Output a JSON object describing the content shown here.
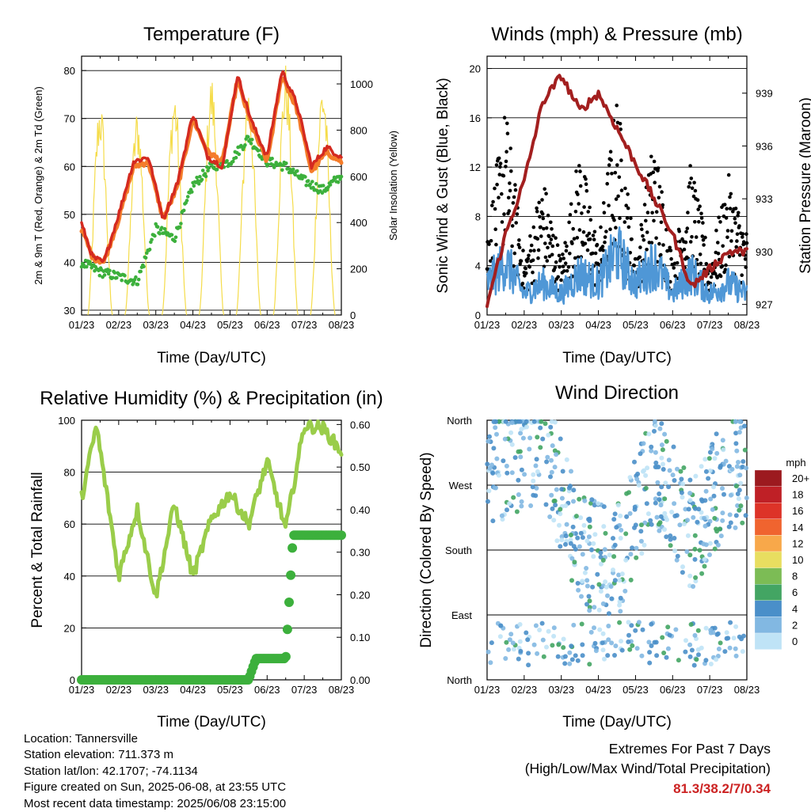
{
  "panels": {
    "temperature": {
      "title": "Temperature (F)",
      "xlabel": "Time (Day/UTC)",
      "ylabel_left": "2m & 9m T (Red, Orange) & 2m Td (Green)",
      "ylabel_right": "Solar Insolation (Yellow)"
    },
    "winds": {
      "title": "Winds (mph) & Pressure (mb)",
      "xlabel": "Time (Day/UTC)",
      "ylabel_left": "Sonic Wind & Gust (Blue, Black)",
      "ylabel_right": "Station Pressure (Maroon)"
    },
    "humidity": {
      "title": "Relative Humidity (%) & Precipitation (in)",
      "xlabel": "Time (Day/UTC)",
      "ylabel_left": "Percent & Total Rainfall"
    },
    "direction": {
      "title": "Wind Direction",
      "xlabel": "Time (Day/UTC)",
      "ylabel_left": "Direction (Colored By Speed)"
    }
  },
  "legend": {
    "title": "mph",
    "labels": [
      "20+",
      "18",
      "16",
      "14",
      "12",
      "10",
      "8",
      "6",
      "4",
      "2",
      "0"
    ],
    "colors": [
      "#9c1a1f",
      "#bf2026",
      "#dd3328",
      "#f0642f",
      "#f8a84a",
      "#e8de60",
      "#7cbc55",
      "#43a563",
      "#4a8fc9",
      "#82b8e2",
      "#bfe3f6"
    ]
  },
  "station_info": {
    "location": "Location: Tannersville",
    "elevation": "Station elevation: 711.373 m",
    "latlon": "Station lat/lon: 42.1707; -74.1134",
    "created": "Figure created on Sun, 2025-06-08, at 23:55 UTC",
    "recent": "Most recent data timestamp: 2025/06/08 23:15:00"
  },
  "extremes": {
    "line1": "Extremes For Past 7 Days",
    "line2": "(High/Low/Max Wind/Total Precipitation)",
    "value": "81.3/38.2/7/0.34"
  },
  "colors": {
    "temp2m": "#d42a20",
    "temp9m": "#f47c2a",
    "dewpoint": "#3cb03c",
    "solar": "#f5dc4a",
    "wind": "#4f97d6",
    "gust": "#000000",
    "pressure": "#a31f1f",
    "rh": "#9acd4a",
    "precip": "#3cb03c"
  },
  "chart_data": [
    {
      "type": "line",
      "title": "Temperature (F)",
      "x_ticks": [
        "01/23",
        "02/23",
        "03/23",
        "04/23",
        "05/23",
        "06/23",
        "07/23",
        "08/23"
      ],
      "ylim_left": [
        29,
        83
      ],
      "yticks_left": [
        30,
        40,
        50,
        60,
        70,
        80
      ],
      "ylim_right": [
        0,
        1120
      ],
      "yticks_right": [
        0,
        200,
        400,
        600,
        800,
        1000
      ],
      "series": [
        {
          "name": "2m T (Red)",
          "axis": "left",
          "x": [
            0,
            0.3,
            0.6,
            1,
            1.4,
            1.8,
            2.2,
            2.6,
            3,
            3.4,
            3.8,
            4.2,
            4.6,
            5,
            5.4,
            5.8,
            6.2,
            6.6,
            7
          ],
          "y": [
            48,
            41,
            40,
            50,
            61,
            62,
            49,
            57,
            71,
            62,
            60,
            79,
            69,
            62,
            80,
            73,
            60,
            64,
            62
          ]
        },
        {
          "name": "9m T (Orange)",
          "axis": "left",
          "x": [
            0,
            0.3,
            0.6,
            1,
            1.4,
            1.8,
            2.2,
            2.6,
            3,
            3.4,
            3.8,
            4.2,
            4.6,
            5,
            5.4,
            5.8,
            6.2,
            6.6,
            7
          ],
          "y": [
            47,
            41,
            40,
            49,
            60,
            61,
            49,
            56,
            70,
            63,
            61,
            78,
            68,
            61,
            79,
            72,
            59,
            63,
            61
          ]
        },
        {
          "name": "2m Td (Green)",
          "axis": "left",
          "x": [
            0,
            0.5,
            1,
            1.5,
            2,
            2.5,
            3,
            3.5,
            4,
            4.5,
            5,
            5.5,
            6,
            6.5,
            7
          ],
          "y": [
            40,
            38,
            37,
            36,
            47,
            45,
            56,
            60,
            61,
            66,
            61,
            60,
            57,
            55,
            58
          ]
        },
        {
          "name": "Solar Insolation (Yellow)",
          "axis": "right",
          "x": [
            0.5,
            1.5,
            2.5,
            3.5,
            4.5,
            5.5,
            6.5
          ],
          "y": [
            950,
            900,
            1000,
            1050,
            1020,
            1100,
            1050
          ]
        }
      ]
    },
    {
      "type": "line",
      "title": "Winds (mph) & Pressure (mb)",
      "x_ticks": [
        "01/23",
        "02/23",
        "03/23",
        "04/23",
        "05/23",
        "06/23",
        "07/23",
        "08/23"
      ],
      "ylim_left": [
        0,
        21
      ],
      "yticks_left": [
        0,
        4,
        8,
        12,
        16,
        20
      ],
      "ylim_right": [
        926.4,
        941.1
      ],
      "yticks_right": [
        927,
        930,
        933,
        936,
        939
      ],
      "series": [
        {
          "name": "Sonic Wind (Blue)",
          "axis": "left",
          "x": [
            0,
            0.5,
            1,
            1.5,
            2,
            2.5,
            3,
            3.5,
            4,
            4.5,
            5,
            5.5,
            6,
            6.5,
            7
          ],
          "y": [
            3,
            5,
            2,
            3,
            2,
            4,
            3,
            6,
            3,
            5,
            2,
            4,
            2,
            3,
            2
          ]
        },
        {
          "name": "Gust (Black)",
          "axis": "left",
          "x": [
            0,
            0.5,
            1,
            1.5,
            2,
            2.5,
            3,
            3.5,
            4,
            4.5,
            5,
            5.5,
            6,
            6.5,
            7
          ],
          "y": [
            6,
            15,
            4,
            10,
            4,
            12,
            5,
            16,
            4,
            13,
            4,
            11,
            4,
            10,
            6
          ]
        },
        {
          "name": "Station Pressure (Maroon)",
          "axis": "right",
          "x": [
            0,
            0.5,
            1,
            1.5,
            2,
            2.5,
            3,
            3.5,
            4,
            4.5,
            5,
            5.5,
            6,
            6.5,
            7
          ],
          "y": [
            927,
            931,
            934,
            938.5,
            940,
            938,
            939,
            937,
            935,
            933,
            931,
            928,
            929,
            930,
            930
          ]
        }
      ]
    },
    {
      "type": "line",
      "title": "Relative Humidity (%) & Precipitation (in)",
      "x_ticks": [
        "01/23",
        "02/23",
        "03/23",
        "04/23",
        "05/23",
        "06/23",
        "07/23",
        "08/23"
      ],
      "ylim_left": [
        0,
        100
      ],
      "yticks_left": [
        0,
        20,
        40,
        60,
        80,
        100
      ],
      "ylim_right": [
        0,
        0.61
      ],
      "yticks_right": [
        "0.00",
        "0.10",
        "0.20",
        "0.30",
        "0.40",
        "0.50",
        "0.60"
      ],
      "series": [
        {
          "name": "Relative Humidity",
          "axis": "left",
          "x": [
            0,
            0.4,
            0.8,
            1,
            1.5,
            2,
            2.5,
            3,
            3.5,
            4,
            4.5,
            5,
            5.5,
            6,
            6.5,
            7
          ],
          "y": [
            70,
            98,
            60,
            40,
            66,
            32,
            68,
            40,
            62,
            72,
            60,
            84,
            58,
            98,
            97,
            88
          ]
        },
        {
          "name": "Total Rainfall",
          "axis": "right",
          "x": [
            0,
            4.5,
            4.7,
            5.5,
            5.7,
            6,
            7
          ],
          "y": [
            0,
            0,
            0.05,
            0.05,
            0.34,
            0.34,
            0.34
          ]
        }
      ]
    },
    {
      "type": "scatter",
      "title": "Wind Direction",
      "x_ticks": [
        "01/23",
        "02/23",
        "03/23",
        "04/23",
        "05/23",
        "06/23",
        "07/23",
        "08/23"
      ],
      "y_ticks": [
        "North",
        "West",
        "South",
        "East",
        "North"
      ],
      "series": [
        {
          "name": "Direction",
          "x": [
            0.5,
            1.5,
            2.5,
            3.5,
            4.5,
            5.5,
            6.5
          ],
          "y": [
            300,
            330,
            180,
            160,
            300,
            200,
            290
          ]
        }
      ]
    }
  ]
}
